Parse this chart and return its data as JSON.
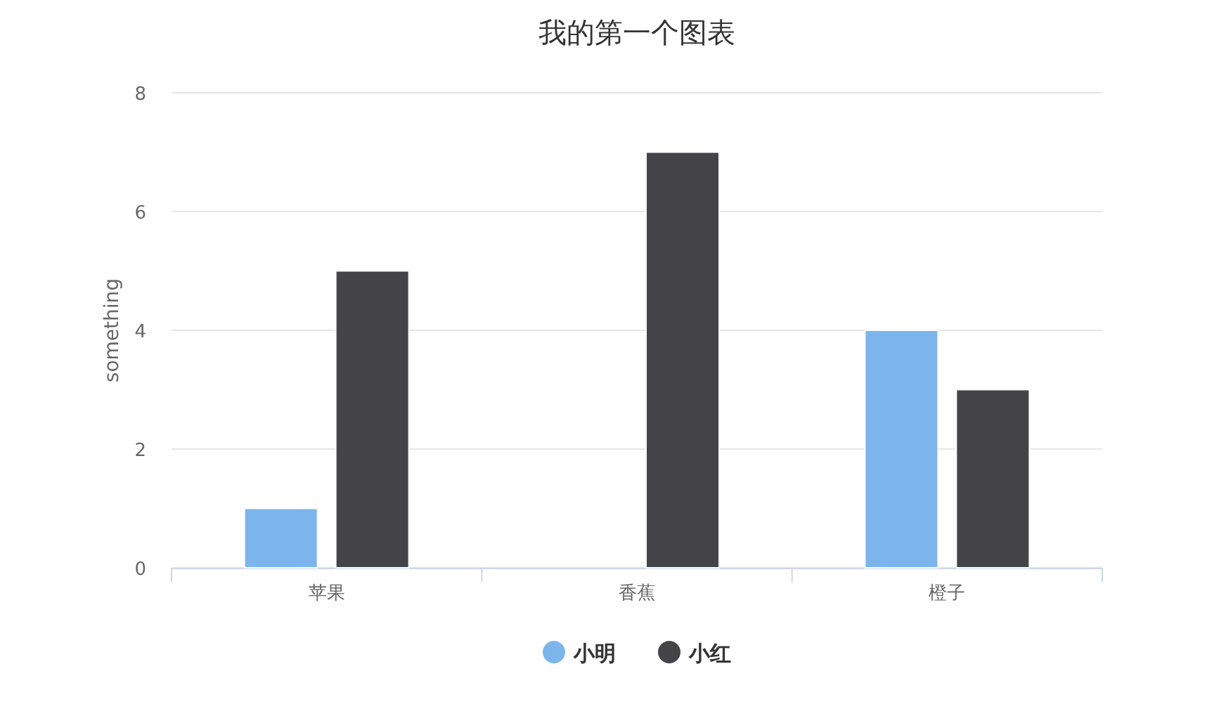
{
  "chart_data": {
    "type": "bar",
    "title": "我的第一个图表",
    "ylabel": "something",
    "categories": [
      "苹果",
      "香蕉",
      "橙子"
    ],
    "series": [
      {
        "name": "小明",
        "color": "#7cb5ec",
        "values": [
          1,
          0,
          4
        ]
      },
      {
        "name": "小红",
        "color": "#434348",
        "values": [
          5,
          7,
          3
        ]
      }
    ],
    "ylim": [
      0,
      8
    ],
    "yticks": [
      0,
      2,
      4,
      6,
      8
    ],
    "grid": "y",
    "legend": "bottom"
  }
}
